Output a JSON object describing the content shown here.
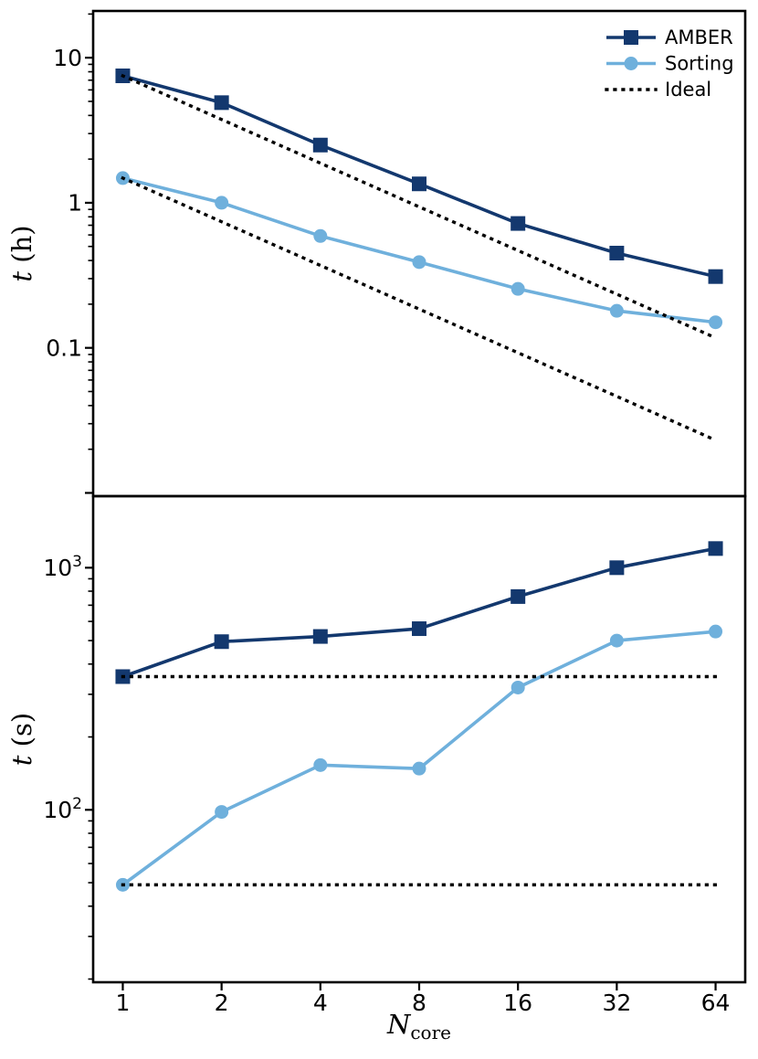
{
  "figure": {
    "background": "#ffffff",
    "axis_color": "#000000"
  },
  "colors": {
    "amber": "#13386e",
    "sorting": "#6fb0dc",
    "ideal": "#000000"
  },
  "chart_data": [
    {
      "id": "runtime-hours",
      "type": "line",
      "xscale": "log2",
      "yscale": "log10",
      "x": [
        1,
        2,
        4,
        8,
        16,
        32,
        64
      ],
      "xlim": [
        0.812,
        78.8
      ],
      "ylim": [
        0.0095,
        21
      ],
      "ylabel": {
        "var": "t",
        "unit": " (h)"
      },
      "yticks": [
        {
          "value": 10,
          "label": "10"
        },
        {
          "value": 1,
          "label": "1"
        },
        {
          "value": 0.1,
          "label": "0.1"
        }
      ],
      "grid": false,
      "series": [
        {
          "name": "AMBER",
          "color": "#13386e",
          "marker": "square",
          "line": "solid",
          "values": [
            7.5,
            4.9,
            2.5,
            1.35,
            0.72,
            0.45,
            0.31
          ]
        },
        {
          "name": "Sorting",
          "color": "#6fb0dc",
          "marker": "circle",
          "line": "solid",
          "values": [
            1.48,
            1.0,
            0.59,
            0.39,
            0.255,
            0.18,
            0.15
          ]
        },
        {
          "name": "Ideal",
          "color": "#000000",
          "marker": "none",
          "line": "dotted",
          "values": [
            7.5,
            3.75,
            1.875,
            0.9375,
            0.4688,
            0.2344,
            0.1172
          ]
        },
        {
          "name": "Ideal",
          "color": "#000000",
          "marker": "none",
          "line": "dotted",
          "values": [
            1.48,
            0.74,
            0.37,
            0.185,
            0.0925,
            0.0463,
            0.0231
          ]
        }
      ],
      "legend": {
        "position": "upper-right",
        "entries": [
          {
            "label": "AMBER",
            "marker": "square",
            "line": "solid",
            "color": "#13386e"
          },
          {
            "label": "Sorting",
            "marker": "circle",
            "line": "solid",
            "color": "#6fb0dc"
          },
          {
            "label": "Ideal",
            "marker": "none",
            "line": "dotted",
            "color": "#000000"
          }
        ]
      }
    },
    {
      "id": "runtime-seconds",
      "type": "line",
      "xscale": "log2",
      "yscale": "log10",
      "x": [
        1,
        2,
        4,
        8,
        16,
        32,
        64
      ],
      "xlim": [
        0.812,
        78.8
      ],
      "ylim": [
        19.4,
        1975
      ],
      "ylabel": {
        "var": "t",
        "unit": " (s)"
      },
      "xlabel": {
        "var": "N",
        "sub": "core"
      },
      "yticks": [
        {
          "value": 1000,
          "base": "10",
          "exp": "3"
        },
        {
          "value": 100,
          "base": "10",
          "exp": "2"
        }
      ],
      "xticks": [
        {
          "value": 1,
          "label": "1"
        },
        {
          "value": 2,
          "label": "2"
        },
        {
          "value": 4,
          "label": "4"
        },
        {
          "value": 8,
          "label": "8"
        },
        {
          "value": 16,
          "label": "16"
        },
        {
          "value": 32,
          "label": "32"
        },
        {
          "value": 64,
          "label": "64"
        }
      ],
      "grid": false,
      "series": [
        {
          "name": "AMBER",
          "color": "#13386e",
          "marker": "square",
          "line": "solid",
          "values": [
            355,
            495,
            520,
            560,
            760,
            1000,
            1200
          ]
        },
        {
          "name": "Sorting",
          "color": "#6fb0dc",
          "marker": "circle",
          "line": "solid",
          "values": [
            49,
            98,
            153,
            148,
            320,
            500,
            545
          ]
        },
        {
          "name": "Ideal",
          "color": "#000000",
          "marker": "none",
          "line": "dotted",
          "values": [
            355,
            355,
            355,
            355,
            355,
            355,
            355
          ]
        },
        {
          "name": "Ideal",
          "color": "#000000",
          "marker": "none",
          "line": "dotted",
          "values": [
            49,
            49,
            49,
            49,
            49,
            49,
            49
          ]
        }
      ]
    }
  ]
}
